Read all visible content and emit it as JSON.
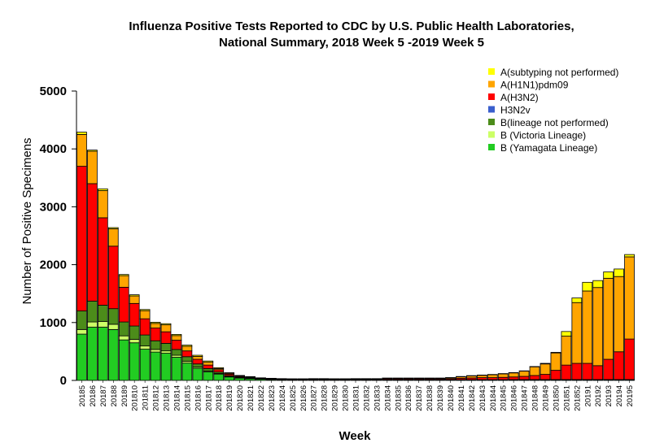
{
  "chart_data": {
    "type": "bar",
    "stacked": true,
    "title": "Influenza Positive Tests Reported to CDC by U.S. Public Health Laboratories,",
    "subtitle": "National Summary, 2018 Week 5 -2019 Week 5",
    "xlabel": "Week",
    "ylabel": "Number of Positive Specimens",
    "ylim": [
      0,
      5000
    ],
    "yticks": [
      0,
      1000,
      2000,
      3000,
      4000,
      5000
    ],
    "legend_position": "top-right",
    "categories": [
      "20185",
      "20186",
      "20187",
      "20188",
      "20189",
      "201810",
      "201811",
      "201812",
      "201813",
      "201814",
      "201815",
      "201816",
      "201817",
      "201818",
      "201819",
      "201820",
      "201821",
      "201822",
      "201823",
      "201824",
      "201825",
      "201826",
      "201827",
      "201828",
      "201829",
      "201830",
      "201831",
      "201832",
      "201833",
      "201834",
      "201835",
      "201836",
      "201837",
      "201838",
      "201839",
      "201840",
      "201841",
      "201842",
      "201843",
      "201844",
      "201845",
      "201846",
      "201847",
      "201848",
      "201849",
      "201850",
      "201851",
      "201852",
      "20191",
      "20192",
      "20193",
      "20194",
      "20195"
    ],
    "series": [
      {
        "name": "B (Yamagata Lineage)",
        "color": "#22cc22",
        "values": [
          800,
          920,
          920,
          880,
          700,
          650,
          540,
          490,
          470,
          400,
          300,
          210,
          150,
          110,
          60,
          40,
          30,
          20,
          15,
          12,
          10,
          10,
          10,
          10,
          8,
          8,
          8,
          8,
          8,
          8,
          8,
          8,
          8,
          8,
          8,
          8,
          8,
          8,
          8,
          8,
          8,
          10,
          10,
          10,
          10,
          10,
          10,
          10,
          10,
          10,
          10,
          10,
          10
        ]
      },
      {
        "name": "B (Victoria Lineage)",
        "color": "#ccff66",
        "values": [
          80,
          90,
          100,
          90,
          70,
          60,
          55,
          45,
          40,
          35,
          30,
          20,
          15,
          10,
          8,
          6,
          5,
          3,
          3,
          2,
          2,
          2,
          2,
          2,
          2,
          2,
          2,
          2,
          2,
          2,
          2,
          2,
          2,
          2,
          2,
          2,
          2,
          2,
          2,
          2,
          2,
          2,
          2,
          2,
          2,
          2,
          2,
          2,
          2,
          2,
          2,
          2,
          2
        ]
      },
      {
        "name": "B(lineage not performed)",
        "color": "#4c8c1a",
        "values": [
          320,
          360,
          280,
          270,
          240,
          230,
          190,
          150,
          130,
          100,
          80,
          55,
          40,
          25,
          15,
          10,
          8,
          5,
          5,
          3,
          3,
          3,
          3,
          3,
          3,
          3,
          3,
          3,
          3,
          3,
          3,
          3,
          3,
          3,
          3,
          3,
          3,
          3,
          3,
          3,
          3,
          3,
          3,
          3,
          3,
          3,
          3,
          3,
          3,
          3,
          3,
          3,
          3
        ]
      },
      {
        "name": "H3N2v",
        "color": "#3a5fcd",
        "values": [
          0,
          0,
          0,
          0,
          0,
          0,
          0,
          0,
          0,
          0,
          0,
          0,
          0,
          0,
          0,
          0,
          0,
          0,
          0,
          0,
          0,
          0,
          0,
          0,
          0,
          0,
          0,
          0,
          0,
          0,
          0,
          0,
          0,
          0,
          0,
          0,
          0,
          0,
          0,
          0,
          0,
          0,
          0,
          0,
          0,
          0,
          0,
          0,
          0,
          0,
          0,
          0,
          0
        ]
      },
      {
        "name": "A(H3N2)",
        "color": "#ff0000",
        "values": [
          2500,
          2030,
          1510,
          1080,
          600,
          390,
          280,
          220,
          200,
          160,
          100,
          80,
          60,
          40,
          25,
          15,
          10,
          8,
          6,
          6,
          5,
          5,
          8,
          8,
          8,
          8,
          10,
          10,
          10,
          15,
          15,
          15,
          15,
          15,
          15,
          18,
          25,
          30,
          35,
          35,
          40,
          45,
          55,
          70,
          90,
          160,
          250,
          280,
          280,
          240,
          350,
          480,
          700
        ]
      },
      {
        "name": "A(H1N1)pdm09",
        "color": "#ffa500",
        "values": [
          550,
          560,
          470,
          300,
          200,
          130,
          140,
          80,
          120,
          80,
          80,
          50,
          50,
          20,
          15,
          10,
          8,
          6,
          5,
          5,
          5,
          5,
          5,
          5,
          5,
          5,
          5,
          5,
          5,
          10,
          10,
          10,
          10,
          10,
          10,
          15,
          25,
          35,
          40,
          50,
          60,
          70,
          90,
          150,
          180,
          300,
          500,
          1050,
          1250,
          1350,
          1400,
          1300,
          1420
        ]
      },
      {
        "name": "A(subtyping not performed)",
        "color": "#ffff00",
        "values": [
          40,
          20,
          30,
          20,
          20,
          20,
          20,
          20,
          20,
          20,
          20,
          20,
          20,
          15,
          10,
          5,
          5,
          3,
          3,
          3,
          3,
          3,
          3,
          3,
          3,
          3,
          3,
          3,
          3,
          3,
          3,
          3,
          3,
          3,
          3,
          3,
          5,
          5,
          5,
          5,
          5,
          5,
          5,
          5,
          10,
          10,
          80,
          80,
          150,
          120,
          110,
          130,
          40
        ]
      }
    ]
  }
}
